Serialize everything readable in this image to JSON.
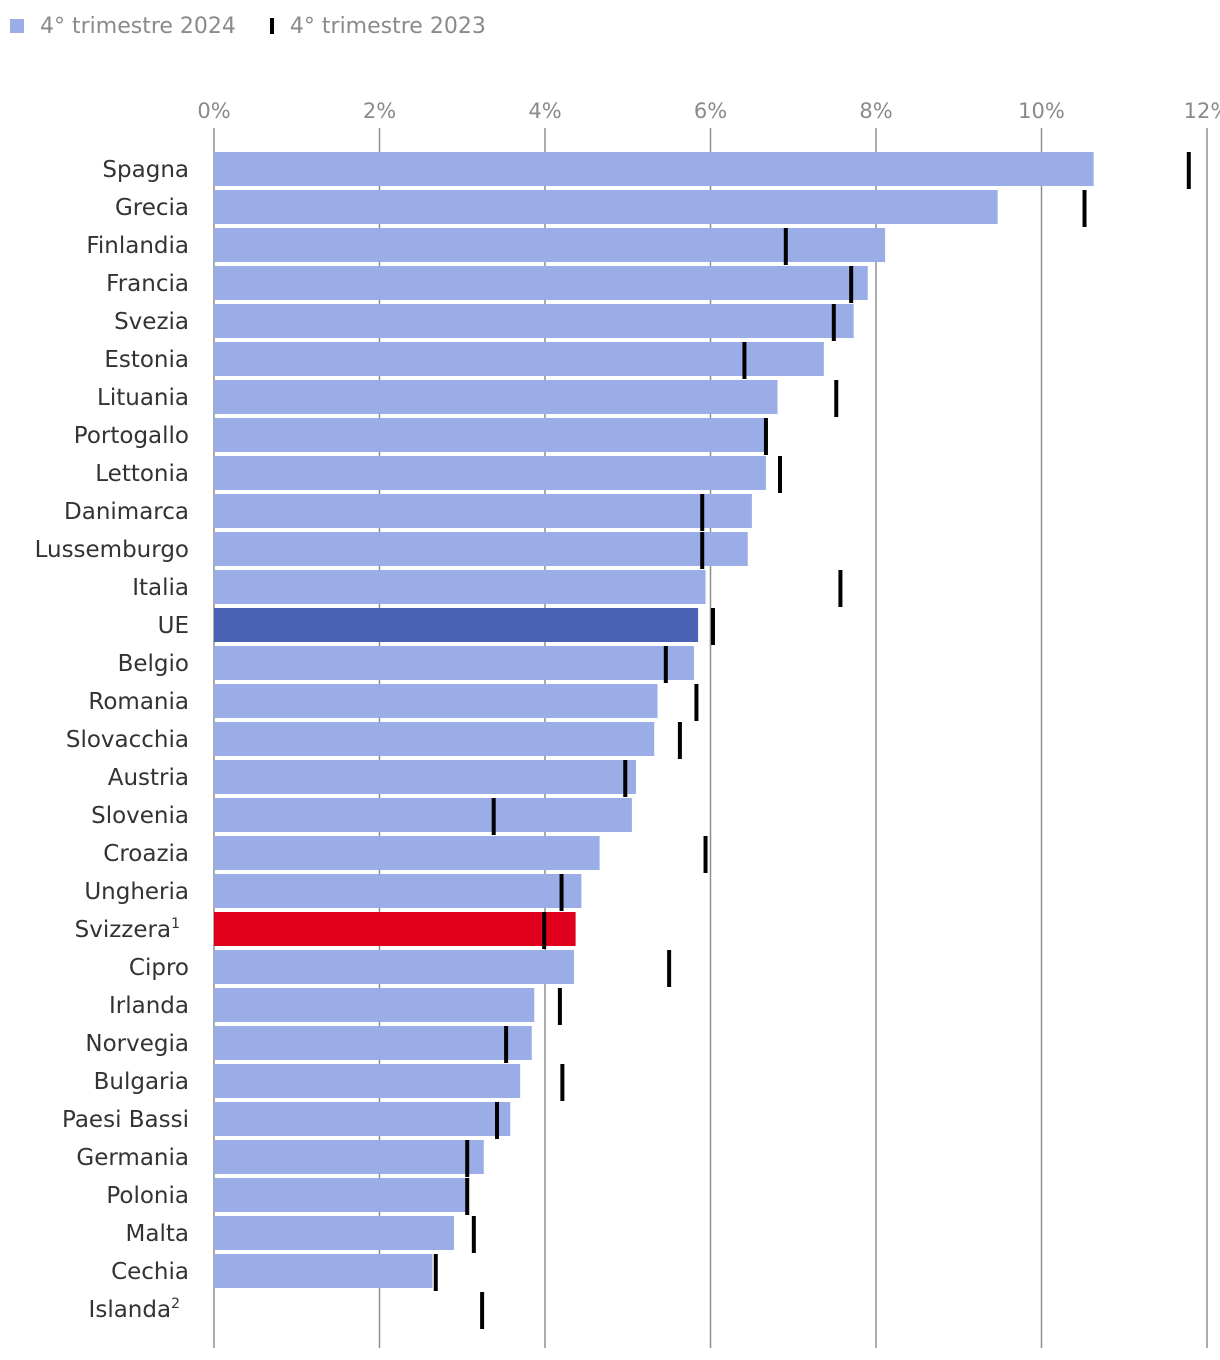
{
  "chart_data": {
    "type": "bar",
    "orientation": "horizontal",
    "title": "",
    "xlabel": "",
    "ylabel": "",
    "xlim": [
      0,
      12
    ],
    "xticks": [
      0,
      2,
      4,
      6,
      8,
      10,
      12
    ],
    "tick_suffix": "%",
    "grid": true,
    "legend_position": "top-left",
    "legend": [
      {
        "label": "4° trimestre 2024",
        "marker": "bar",
        "color": "#9badE6"
      },
      {
        "label": "4° trimestre 2023",
        "marker": "tick",
        "color": "#000000"
      }
    ],
    "colors": {
      "default": "#9badE6",
      "eu": "#4a62b3",
      "switzerland": "#e0001b",
      "marker": "#000000",
      "grid": "#8f8f8f",
      "label": "#333333",
      "tick_label": "#8a8a8a"
    },
    "categories": [
      "Spagna",
      "Grecia",
      "Finlandia",
      "Francia",
      "Svezia",
      "Estonia",
      "Lituania",
      "Portogallo",
      "Lettonia",
      "Danimarca",
      "Lussemburgo",
      "Italia",
      "UE",
      "Belgio",
      "Romania",
      "Slovacchia",
      "Austria",
      "Slovenia",
      "Croazia",
      "Ungheria",
      "Svizzera",
      "Cipro",
      "Irlanda",
      "Norvegia",
      "Bulgaria",
      "Paesi Bassi",
      "Germania",
      "Polonia",
      "Malta",
      "Cechia",
      "Islanda"
    ],
    "label_superscripts": {
      "Svizzera": "1",
      "Islanda": "2"
    },
    "highlight": {
      "UE": "eu",
      "Svizzera": "switzerland"
    },
    "series": [
      {
        "name": "4° trimestre 2024",
        "values": [
          10.63,
          9.47,
          8.11,
          7.9,
          7.73,
          7.37,
          6.81,
          6.67,
          6.67,
          6.5,
          6.45,
          5.94,
          5.85,
          5.8,
          5.36,
          5.32,
          5.1,
          5.05,
          4.66,
          4.44,
          4.37,
          4.35,
          3.87,
          3.84,
          3.7,
          3.58,
          3.26,
          3.06,
          2.9,
          2.64,
          null
        ]
      },
      {
        "name": "4° trimestre 2023",
        "values": [
          11.78,
          10.52,
          6.91,
          7.7,
          7.49,
          6.41,
          7.52,
          6.67,
          6.84,
          5.9,
          5.9,
          7.57,
          6.03,
          5.46,
          5.83,
          5.63,
          4.97,
          3.38,
          5.94,
          4.2,
          3.99,
          5.5,
          4.18,
          3.53,
          4.21,
          3.42,
          3.06,
          3.06,
          3.14,
          2.68,
          3.24
        ]
      }
    ]
  }
}
